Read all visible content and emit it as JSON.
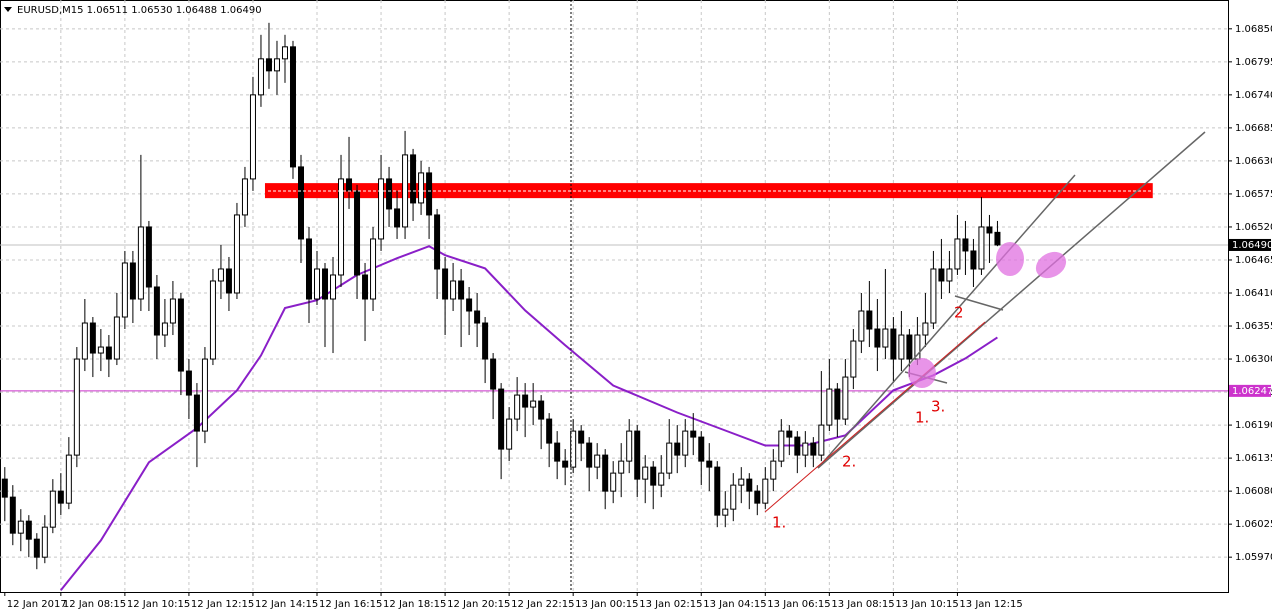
{
  "chart_data": {
    "type": "candlestick",
    "header": "EURUSD,M15  1.06511 1.06530 1.06488 1.06490",
    "ylim": [
      1.05912,
      1.06898
    ],
    "xlim": [
      -0.6,
      152.8
    ],
    "yticks": [
      {
        "value": 1.0685,
        "label": "1.06850"
      },
      1.06795,
      {
        "value": 1.0674,
        "label": "1.06740"
      },
      1.06685,
      {
        "value": 1.0663,
        "label": "1.06630"
      },
      1.06575,
      {
        "value": 1.0652,
        "label": "1.06520"
      },
      1.06465,
      {
        "value": 1.0641,
        "label": "1.06410"
      },
      1.06355,
      {
        "value": 1.063,
        "label": "1.06300"
      },
      1.06245,
      {
        "value": 1.0619,
        "label": "1.06190"
      },
      1.06135,
      {
        "value": 1.0608,
        "label": "1.06080"
      },
      1.06025,
      {
        "value": 1.0597,
        "label": "1.05970"
      }
    ],
    "xticks": [
      {
        "value": 0,
        "label": "12 Jan 2017"
      },
      {
        "value": 7,
        "label": "12 Jan 08:15"
      },
      {
        "value": 15,
        "label": "12 Jan 10:15"
      },
      {
        "value": 23,
        "label": "12 Jan 12:15"
      },
      {
        "value": 31,
        "label": "12 Jan 14:15"
      },
      {
        "value": 39,
        "label": "12 Jan 16:15"
      },
      {
        "value": 47,
        "label": "12 Jan 18:15"
      },
      {
        "value": 55,
        "label": "12 Jan 20:15"
      },
      {
        "value": 63,
        "label": "12 Jan 22:15"
      },
      {
        "value": 71,
        "label": "13 Jan 00:15"
      },
      {
        "value": 79,
        "label": "13 Jan 02:15"
      },
      {
        "value": 87,
        "label": "13 Jan 04:15"
      },
      {
        "value": 95,
        "label": "13 Jan 06:15"
      },
      {
        "value": 103,
        "label": "13 Jan 08:15"
      },
      {
        "value": 111,
        "label": "13 Jan 10:15"
      },
      {
        "value": 119,
        "label": "13 Jan 12:15"
      }
    ],
    "grid": true,
    "up_color": "#ffffff",
    "down_color": "#000000",
    "candles": [
      [
        1.061,
        1.0612,
        1.0603,
        1.0607
      ],
      [
        1.0607,
        1.0609,
        1.0599,
        1.0601
      ],
      [
        1.0601,
        1.0605,
        1.0598,
        1.0603
      ],
      [
        1.0603,
        1.0604,
        1.0597,
        1.06
      ],
      [
        1.06,
        1.0601,
        1.0595,
        1.0597
      ],
      [
        1.0597,
        1.0604,
        1.0596,
        1.0602
      ],
      [
        1.0602,
        1.061,
        1.0601,
        1.0608
      ],
      [
        1.0608,
        1.0611,
        1.0604,
        1.0606
      ],
      [
        1.0606,
        1.0617,
        1.0605,
        1.0614
      ],
      [
        1.0614,
        1.0632,
        1.0612,
        1.063
      ],
      [
        1.063,
        1.064,
        1.0628,
        1.0636
      ],
      [
        1.0636,
        1.0637,
        1.0627,
        1.0631
      ],
      [
        1.0631,
        1.0635,
        1.0628,
        1.0632
      ],
      [
        1.0632,
        1.0634,
        1.0627,
        1.063
      ],
      [
        1.063,
        1.0641,
        1.0629,
        1.0637
      ],
      [
        1.0637,
        1.0648,
        1.0635,
        1.0646
      ],
      [
        1.0646,
        1.0648,
        1.0636,
        1.064
      ],
      [
        1.064,
        1.0664,
        1.0638,
        1.0652
      ],
      [
        1.0652,
        1.0653,
        1.0638,
        1.0642
      ],
      [
        1.0642,
        1.0644,
        1.063,
        1.0634
      ],
      [
        1.0634,
        1.064,
        1.0632,
        1.0636
      ],
      [
        1.0636,
        1.0643,
        1.0634,
        1.064
      ],
      [
        1.064,
        1.0641,
        1.0624,
        1.0628
      ],
      [
        1.0628,
        1.063,
        1.062,
        1.0624
      ],
      [
        1.0624,
        1.0626,
        1.0612,
        1.0618
      ],
      [
        1.0618,
        1.0632,
        1.0616,
        1.063
      ],
      [
        1.063,
        1.0645,
        1.0629,
        1.0643
      ],
      [
        1.0643,
        1.0649,
        1.064,
        1.0645
      ],
      [
        1.0645,
        1.0647,
        1.0638,
        1.0641
      ],
      [
        1.0641,
        1.0656,
        1.064,
        1.0654
      ],
      [
        1.0654,
        1.0662,
        1.0652,
        1.066
      ],
      [
        1.066,
        1.0677,
        1.0658,
        1.0674
      ],
      [
        1.0674,
        1.0684,
        1.0672,
        1.068
      ],
      [
        1.068,
        1.0686,
        1.0675,
        1.0678
      ],
      [
        1.0678,
        1.0683,
        1.0674,
        1.068
      ],
      [
        1.068,
        1.0684,
        1.0676,
        1.0682
      ],
      [
        1.0682,
        1.0683,
        1.066,
        1.0662
      ],
      [
        1.0662,
        1.0664,
        1.0646,
        1.065
      ],
      [
        1.065,
        1.0652,
        1.0636,
        1.064
      ],
      [
        1.064,
        1.0648,
        1.0639,
        1.0645
      ],
      [
        1.0645,
        1.0646,
        1.0632,
        1.064
      ],
      [
        1.064,
        1.0647,
        1.0631,
        1.0644
      ],
      [
        1.0644,
        1.0664,
        1.0642,
        1.066
      ],
      [
        1.066,
        1.0667,
        1.0655,
        1.0658
      ],
      [
        1.0658,
        1.0659,
        1.064,
        1.0644
      ],
      [
        1.0644,
        1.0646,
        1.0633,
        1.064
      ],
      [
        1.064,
        1.0652,
        1.0638,
        1.065
      ],
      [
        1.065,
        1.0664,
        1.0648,
        1.066
      ],
      [
        1.066,
        1.0662,
        1.0652,
        1.0655
      ],
      [
        1.0655,
        1.0658,
        1.065,
        1.0652
      ],
      [
        1.0652,
        1.0668,
        1.065,
        1.0664
      ],
      [
        1.0664,
        1.0665,
        1.0653,
        1.0656
      ],
      [
        1.0656,
        1.0663,
        1.0654,
        1.0661
      ],
      [
        1.0661,
        1.0662,
        1.065,
        1.0654
      ],
      [
        1.0654,
        1.0655,
        1.064,
        1.0645
      ],
      [
        1.0645,
        1.0647,
        1.0634,
        1.064
      ],
      [
        1.064,
        1.0646,
        1.0638,
        1.0643
      ],
      [
        1.0643,
        1.0645,
        1.0632,
        1.064
      ],
      [
        1.064,
        1.0642,
        1.0634,
        1.0638
      ],
      [
        1.0638,
        1.0641,
        1.0632,
        1.0636
      ],
      [
        1.0636,
        1.0637,
        1.0626,
        1.063
      ],
      [
        1.063,
        1.0631,
        1.062,
        1.0625
      ],
      [
        1.0625,
        1.0626,
        1.061,
        1.0615
      ],
      [
        1.0615,
        1.0622,
        1.0613,
        1.062
      ],
      [
        1.062,
        1.0627,
        1.0618,
        1.0624
      ],
      [
        1.0624,
        1.0626,
        1.0617,
        1.0622
      ],
      [
        1.0622,
        1.0626,
        1.0619,
        1.0623
      ],
      [
        1.0623,
        1.0624,
        1.0615,
        1.062
      ],
      [
        1.062,
        1.0621,
        1.0612,
        1.0616
      ],
      [
        1.0616,
        1.0618,
        1.061,
        1.0613
      ],
      [
        1.0613,
        1.0615,
        1.0609,
        1.0612
      ],
      [
        1.0612,
        1.062,
        1.0611,
        1.0618
      ],
      [
        1.0618,
        1.0619,
        1.0613,
        1.0616
      ],
      [
        1.0616,
        1.0617,
        1.0608,
        1.0612
      ],
      [
        1.0612,
        1.0616,
        1.061,
        1.0614
      ],
      [
        1.0614,
        1.0615,
        1.0605,
        1.0608
      ],
      [
        1.0608,
        1.0613,
        1.0606,
        1.0611
      ],
      [
        1.0611,
        1.0616,
        1.0607,
        1.0613
      ],
      [
        1.0613,
        1.062,
        1.0611,
        1.0618
      ],
      [
        1.0618,
        1.0619,
        1.0607,
        1.061
      ],
      [
        1.061,
        1.0614,
        1.0606,
        1.0612
      ],
      [
        1.0612,
        1.0613,
        1.0605,
        1.0609
      ],
      [
        1.0609,
        1.0614,
        1.0607,
        1.0611
      ],
      [
        1.0611,
        1.062,
        1.061,
        1.0616
      ],
      [
        1.0616,
        1.0619,
        1.0611,
        1.0614
      ],
      [
        1.0614,
        1.062,
        1.0612,
        1.0618
      ],
      [
        1.0618,
        1.0621,
        1.0614,
        1.0617
      ],
      [
        1.0617,
        1.0618,
        1.0609,
        1.0613
      ],
      [
        1.0613,
        1.0616,
        1.0608,
        1.0612
      ],
      [
        1.0612,
        1.0613,
        1.0602,
        1.0604
      ],
      [
        1.0604,
        1.0608,
        1.0602,
        1.0605
      ],
      [
        1.0605,
        1.0611,
        1.0603,
        1.0609
      ],
      [
        1.0609,
        1.0612,
        1.0606,
        1.061
      ],
      [
        1.061,
        1.0611,
        1.0605,
        1.0608
      ],
      [
        1.0608,
        1.0609,
        1.0604,
        1.0606
      ],
      [
        1.0606,
        1.0612,
        1.0605,
        1.061
      ],
      [
        1.061,
        1.0615,
        1.0608,
        1.0613
      ],
      [
        1.0613,
        1.062,
        1.0612,
        1.0618
      ],
      [
        1.0618,
        1.0619,
        1.0614,
        1.0617
      ],
      [
        1.0617,
        1.0618,
        1.0611,
        1.0614
      ],
      [
        1.0614,
        1.0618,
        1.0612,
        1.0616
      ],
      [
        1.0616,
        1.0617,
        1.0612,
        1.0614
      ],
      [
        1.0614,
        1.0628,
        1.0613,
        1.0619
      ],
      [
        1.0619,
        1.063,
        1.0618,
        1.0625
      ],
      [
        1.0625,
        1.0626,
        1.0617,
        1.062
      ],
      [
        1.062,
        1.063,
        1.0619,
        1.0627
      ],
      [
        1.0627,
        1.0635,
        1.0625,
        1.0633
      ],
      [
        1.0633,
        1.0641,
        1.0631,
        1.0638
      ],
      [
        1.0638,
        1.0643,
        1.0632,
        1.0635
      ],
      [
        1.0635,
        1.064,
        1.0628,
        1.0632
      ],
      [
        1.0632,
        1.0645,
        1.063,
        1.0635
      ],
      [
        1.0635,
        1.0637,
        1.0626,
        1.063
      ],
      [
        1.063,
        1.0638,
        1.0628,
        1.0634
      ],
      [
        1.0634,
        1.0635,
        1.0627,
        1.063
      ],
      [
        1.063,
        1.0637,
        1.0629,
        1.0634
      ],
      [
        1.0634,
        1.0641,
        1.0632,
        1.0636
      ],
      [
        1.0636,
        1.0648,
        1.0635,
        1.0645
      ],
      [
        1.0645,
        1.065,
        1.064,
        1.0643
      ],
      [
        1.0643,
        1.0648,
        1.0641,
        1.0645
      ],
      [
        1.0645,
        1.0654,
        1.0644,
        1.065
      ],
      [
        1.065,
        1.0653,
        1.0644,
        1.0648
      ],
      [
        1.0648,
        1.065,
        1.0642,
        1.0645
      ],
      [
        1.0645,
        1.0657,
        1.0644,
        1.0652
      ],
      [
        1.0652,
        1.0654,
        1.0646,
        1.0651
      ],
      [
        1.06511,
        1.0653,
        1.06488,
        1.0649
      ]
    ],
    "ma": {
      "color": "#8a1fc8",
      "x": [
        7,
        12,
        18,
        24,
        29,
        32,
        35,
        39,
        44,
        49,
        53,
        55,
        60,
        65,
        70,
        76,
        84,
        90,
        95,
        100,
        105,
        111,
        116,
        120,
        124
      ],
      "values": [
        1.05915,
        1.05998,
        1.06128,
        1.06185,
        1.06248,
        1.06306,
        1.06385,
        1.06398,
        1.0644,
        1.06468,
        1.06488,
        1.06473,
        1.06451,
        1.06381,
        1.06323,
        1.06256,
        1.06211,
        1.06181,
        1.06156,
        1.06156,
        1.06173,
        1.06248,
        1.06273,
        1.06301,
        1.06336
      ]
    },
    "zone": {
      "from": 1.06568,
      "to": 1.06593,
      "start": 32.5,
      "end": 143.4,
      "color": "#ff0000"
    },
    "price_lines": [
      {
        "value": 1.0649,
        "label": "1.06490",
        "color": "#c0c0c0",
        "label_bg": "#000000"
      },
      {
        "value": 1.06247,
        "color": "#cc33cc",
        "label_bg": "#cc33cc"
      }
    ],
    "annotations": [
      "1.",
      "2.",
      "1.",
      "3.",
      "2"
    ]
  }
}
